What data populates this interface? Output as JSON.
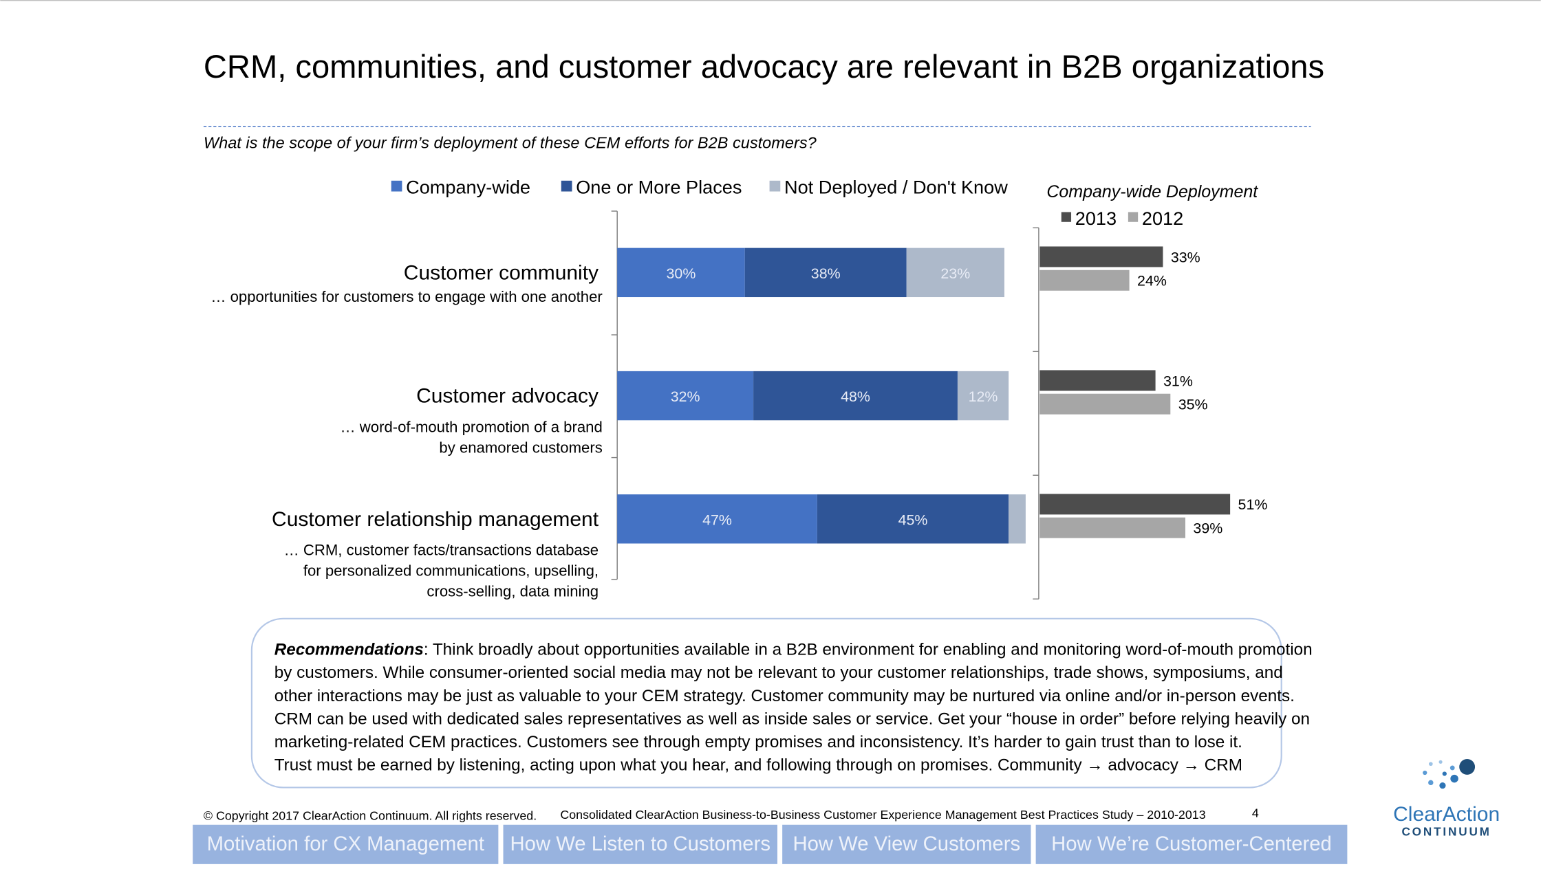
{
  "title": "CRM, communities, and customer advocacy are relevant in B2B organizations",
  "question": "What is the scope of your firm’s deployment of these CEM efforts for B2B customers?",
  "chart_data": [
    {
      "type": "stacked-bar",
      "orientation": "horizontal",
      "categories": [
        "Customer community",
        "Customer advocacy",
        "Customer relationship management"
      ],
      "descriptions": [
        [
          "… opportunities for customers to engage with one another"
        ],
        [
          "… word-of-mouth promotion of a brand",
          "by enamored customers"
        ],
        [
          "… CRM, customer facts/transactions database",
          "for personalized communications, upselling,",
          "cross-selling, data mining"
        ]
      ],
      "xlim": [
        0,
        100
      ],
      "series": [
        {
          "name": "Company-wide",
          "color": "#4472c4",
          "values": [
            30,
            32,
            47
          ],
          "value_labels": [
            "30%",
            "32%",
            "47%"
          ]
        },
        {
          "name": "One or More Places",
          "color": "#2f5597",
          "values": [
            38,
            48,
            45
          ],
          "value_labels": [
            "38%",
            "48%",
            "45%"
          ]
        },
        {
          "name": "Not Deployed / Don't Know",
          "color": "#adb9ca",
          "values": [
            23,
            12,
            4
          ],
          "value_labels": [
            "23%",
            "12%",
            null
          ]
        }
      ]
    },
    {
      "type": "grouped-bar",
      "orientation": "horizontal",
      "title": "Company-wide Deployment",
      "xlim": [
        0,
        100
      ],
      "series": [
        {
          "name": "2013",
          "color": "#4d4d4d",
          "values": [
            33,
            31,
            51
          ],
          "value_labels": [
            "33%",
            "31%",
            "51%"
          ]
        },
        {
          "name": "2012",
          "color": "#a6a6a6",
          "values": [
            24,
            35,
            39
          ],
          "value_labels": [
            "24%",
            "35%",
            "39%"
          ]
        }
      ]
    }
  ],
  "recommendations": {
    "label": "Recommendations",
    "lines": [
      ": Think broadly about opportunities available in a B2B environment for enabling and monitoring word-of-mouth promotion",
      "by customers.  While consumer-oriented social media may not be relevant to your customer relationships, trade shows, symposiums, and",
      "other interactions may be just as valuable to your CEM strategy. Customer community may be nurtured via online and/or in-person events.",
      "CRM can be used with dedicated sales representatives as well as inside sales or service. Get your “house in order” before relying heavily on",
      "marketing-related CEM practices.  Customers see through empty promises and inconsistency.  It’s harder to gain trust than to lose it.",
      "Trust must be earned by listening, acting upon what you hear, and following through on promises. Community → advocacy → CRM"
    ]
  },
  "footer": {
    "copyright": "© Copyright 2017 ClearAction Continuum. All rights reserved.",
    "study": "Consolidated ClearAction Business-to-Business Customer Experience Management Best Practices Study – 2010-2013",
    "page": "4"
  },
  "nav": [
    "Motivation for CX Management",
    "How We Listen to Customers",
    "How We View Customers",
    "How We’re Customer-Centered"
  ],
  "logo": {
    "name": "ClearAction",
    "tagline": "CONTINUUM"
  }
}
